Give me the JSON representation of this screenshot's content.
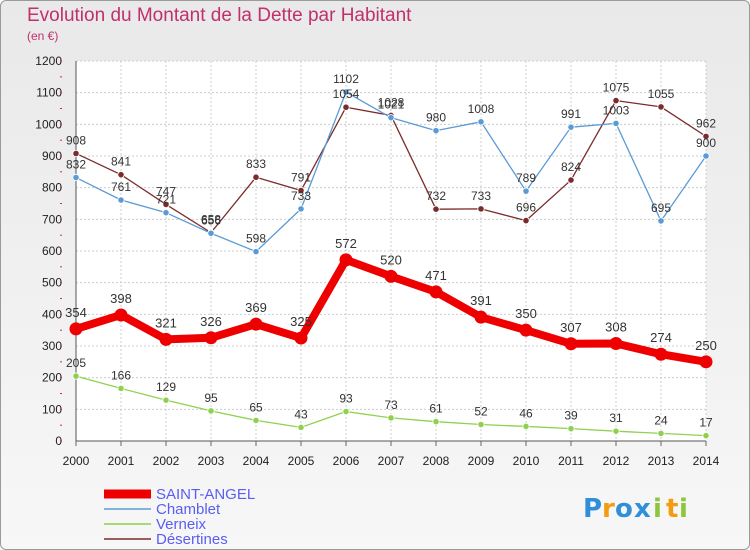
{
  "chart_data": {
    "type": "line",
    "title": "Evolution du Montant de la Dette par Habitant",
    "subtitle": "(en €)",
    "x": [
      2000,
      2001,
      2002,
      2003,
      2004,
      2005,
      2006,
      2007,
      2008,
      2009,
      2010,
      2011,
      2012,
      2013,
      2014
    ],
    "ylim": [
      0,
      1200
    ],
    "yticks": [
      0,
      100,
      200,
      300,
      400,
      500,
      600,
      700,
      800,
      900,
      1000,
      1100,
      1200
    ],
    "grid": true,
    "legend_position": "bottom-left",
    "series": [
      {
        "name": "SAINT-ANGEL",
        "color": "#ee0000",
        "values": [
          354,
          398,
          321,
          326,
          369,
          325,
          572,
          520,
          471,
          391,
          350,
          307,
          308,
          274,
          250
        ],
        "labels": [
          "354",
          "398",
          "321",
          "326",
          "369",
          "325",
          "572",
          "520",
          "471",
          "391",
          "350",
          "307",
          "308",
          "274",
          "250"
        ]
      },
      {
        "name": "Chamblet",
        "color": "#5b9bd5",
        "values": [
          832,
          761,
          721,
          656,
          598,
          733,
          1102,
          1021,
          980,
          1008,
          789,
          991,
          1003,
          695,
          900
        ],
        "labels": [
          "832",
          "761",
          "721",
          "656",
          "598",
          "733",
          "1102",
          "1021",
          "980",
          "1008",
          "789",
          "991",
          "1003",
          "695",
          "900"
        ]
      },
      {
        "name": "Verneix",
        "color": "#8fd14f",
        "values": [
          205,
          166,
          129,
          95,
          65,
          43,
          93,
          73,
          61,
          52,
          46,
          39,
          31,
          24,
          17
        ],
        "labels": [
          "205",
          "166",
          "129",
          "95",
          "65",
          "43",
          "93",
          "73",
          "61",
          "52",
          "46",
          "39",
          "31",
          "24",
          "17"
        ]
      },
      {
        "name": "Désertines",
        "color": "#7b2b2b",
        "values": [
          908,
          841,
          747,
          658,
          833,
          791,
          1054,
          1028,
          732,
          733,
          696,
          824,
          1075,
          1055,
          962
        ],
        "labels": [
          "908",
          "841",
          "747",
          "658",
          "833",
          "791",
          "1054",
          "1028",
          "732",
          "733",
          "696",
          "824",
          "1075",
          "1055",
          "962"
        ]
      }
    ]
  },
  "brand": {
    "letters": [
      "P",
      "r",
      "o",
      "x",
      "i",
      "t",
      "i"
    ],
    "colors": [
      "#2f8fd8",
      "#f39c12",
      "#2f8fd8",
      "#2f8fd8",
      "#8cc63f",
      "#f39c12",
      "#8cc63f"
    ]
  }
}
